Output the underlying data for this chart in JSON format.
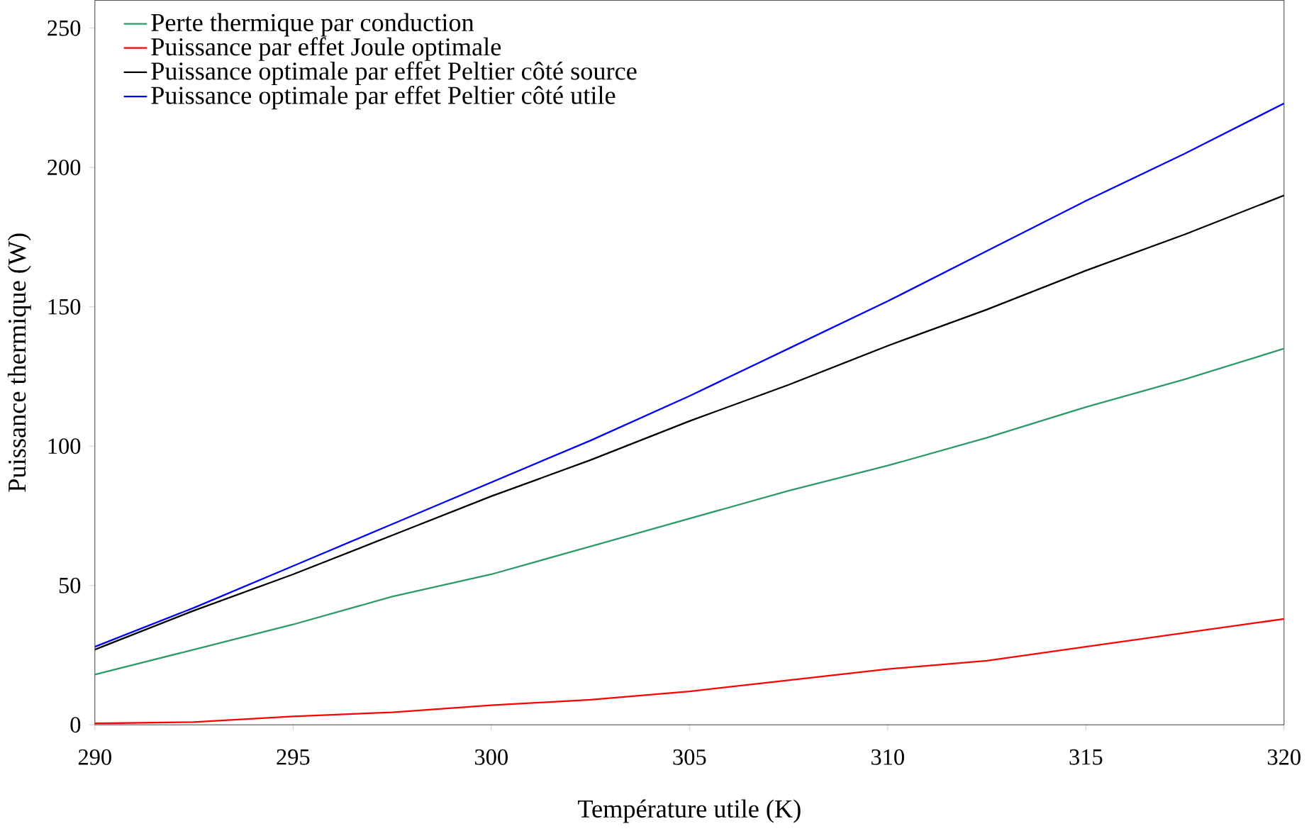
{
  "chart_data": {
    "type": "line",
    "xlabel": "Température utile (K)",
    "ylabel": "Puissance thermique (W)",
    "xlim": [
      290,
      320
    ],
    "xticks": [
      290,
      295,
      300,
      305,
      310,
      315,
      320
    ],
    "ylim": [
      0,
      260
    ],
    "yticks": [
      0,
      50,
      100,
      150,
      200,
      250
    ],
    "x": [
      290,
      292.5,
      295,
      297.5,
      300,
      302.5,
      305,
      307.5,
      310,
      312.5,
      315,
      317.5,
      320
    ],
    "legend": "top left",
    "grid": false,
    "marker": "none",
    "line_style": "solid",
    "series": [
      {
        "name": "Perte thermique par conduction",
        "color": "#2e9a6a",
        "values": [
          18,
          27,
          36,
          46,
          54,
          64,
          74,
          84,
          93,
          103,
          114,
          124,
          135
        ]
      },
      {
        "name": "Puissance par effet Joule optimale",
        "color": "#ff0000",
        "values": [
          0.5,
          1,
          3,
          4.5,
          7,
          9,
          12,
          16,
          20,
          23,
          28,
          33,
          38
        ]
      },
      {
        "name": "Puissance optimale par effet Peltier côté source",
        "color": "#000000",
        "values": [
          27,
          41,
          54,
          68,
          82,
          95,
          109,
          122,
          136,
          149,
          163,
          176,
          190
        ]
      },
      {
        "name": "Puissance optimale par effet Peltier côté utile",
        "color": "#0000ff",
        "values": [
          28,
          42,
          57,
          72,
          87,
          102,
          118,
          135,
          152,
          170,
          188,
          205,
          223
        ]
      }
    ]
  }
}
